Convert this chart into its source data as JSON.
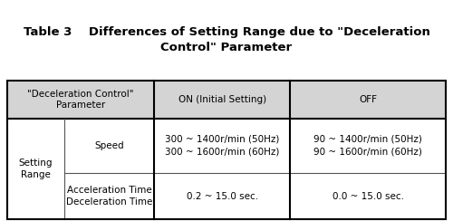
{
  "title_text": "Table 3    Differences of Setting Range due to \"Deceleration\nControl\" Parameter",
  "header_col1": "\"Deceleration Control\"\nParameter",
  "header_col2": "ON (Initial Setting)",
  "header_col3": "OFF",
  "setting_range": "Setting\nRange",
  "speed_label": "Speed",
  "speed_on": "300 ~ 1400r/min (50Hz)\n300 ~ 1600r/min (60Hz)",
  "speed_off": "90 ~ 1400r/min (50Hz)\n90 ~ 1600r/min (60Hz)",
  "accel_label": "Acceleration Time\nDeceleration Time",
  "accel_on": "0.2 ~ 15.0 sec.",
  "accel_off": "0.0 ~ 15.0 sec.",
  "header_bg": "#d4d4d4",
  "body_bg": "#ffffff",
  "border_color": "#555555",
  "outer_border_color": "#000000",
  "title_fontsize": 9.5,
  "cell_fontsize": 7.5,
  "fig_width": 5.0,
  "fig_height": 2.44,
  "dpi": 100
}
